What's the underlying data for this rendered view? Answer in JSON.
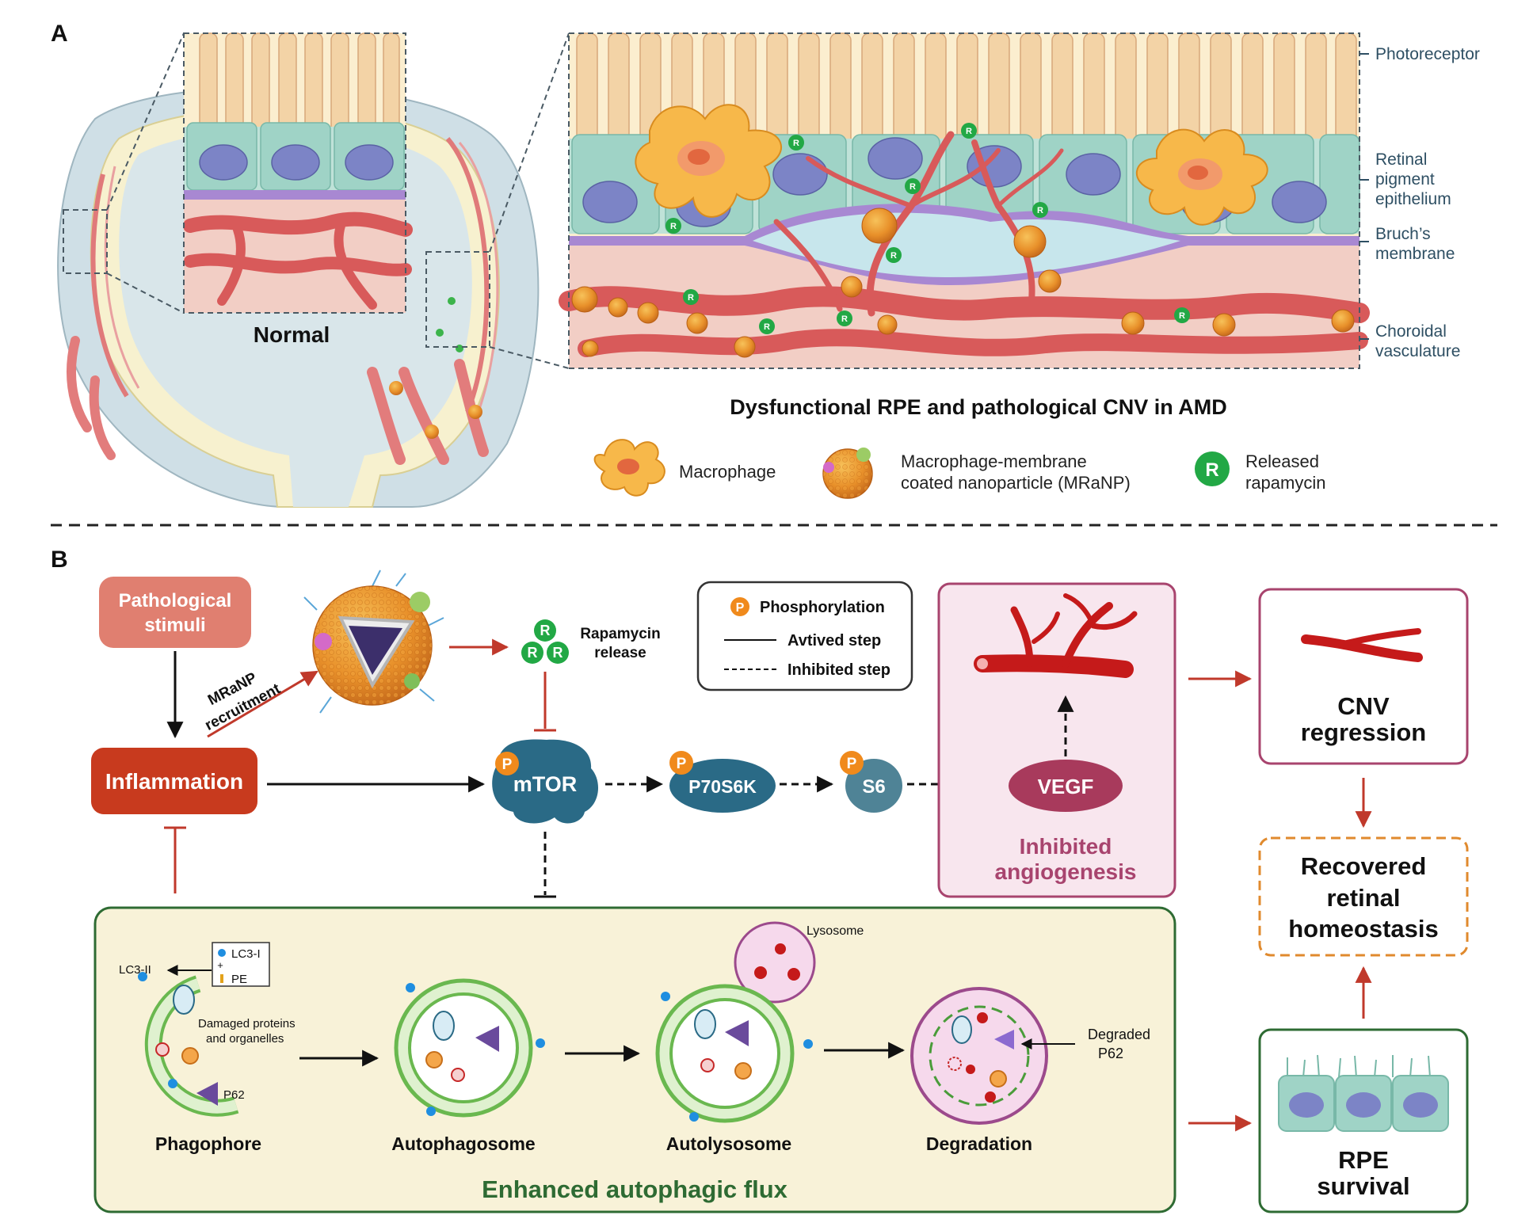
{
  "panelA": {
    "label": "A",
    "normal_label": "Normal",
    "caption": "Dysfunctional RPE and pathological CNV in AMD",
    "layers": {
      "photoreceptor": "Photoreceptor",
      "rpe": [
        "Retinal",
        "pigment",
        "epithelium"
      ],
      "bruch": [
        "Bruch’s",
        "membrane"
      ],
      "choroid": [
        "Choroidal",
        "vasculature"
      ]
    },
    "legend": {
      "macrophage": "Macrophage",
      "mranp": [
        "Macrophage-membrane",
        "coated nanoparticle (MRaNP)"
      ],
      "rapamycin": [
        "Released",
        "rapamycin"
      ],
      "r_letter": "R"
    }
  },
  "panelB": {
    "label": "B",
    "pathological": [
      "Pathological",
      "stimuli"
    ],
    "recruitment": [
      "MRaNP",
      "recruitment"
    ],
    "rapamycin_release": [
      "Rapamycin",
      "release"
    ],
    "r_letter": "R",
    "p_letter": "P",
    "key": {
      "phosphorylation": "Phosphorylation",
      "activated": "Avtived step",
      "inhibited": "Inhibited step"
    },
    "inflammation": "Inflammation",
    "mtor": "mTOR",
    "p70s6k": "P70S6K",
    "s6": "S6",
    "vegf": "VEGF",
    "inhibited_angiogenesis": [
      "Inhibited",
      "angiogenesis"
    ],
    "cnv_regression": [
      "CNV",
      "regression"
    ],
    "recovered": [
      "Recovered",
      "retinal",
      "homeostasis"
    ],
    "rpe_survival": [
      "RPE",
      "survival"
    ],
    "autophagy": {
      "title": "Enhanced autophagic flux",
      "stages": [
        "Phagophore",
        "Autophagosome",
        "Autolysosome",
        "Degradation"
      ],
      "lc3ii": "LC3-II",
      "lc3i": "LC3-I",
      "plus": "+",
      "pe": "PE",
      "damaged": [
        "Damaged proteins",
        "and organelles"
      ],
      "p62": "P62",
      "lysosome": "Lysosome",
      "degraded": [
        "Degraded",
        "P62"
      ]
    }
  }
}
